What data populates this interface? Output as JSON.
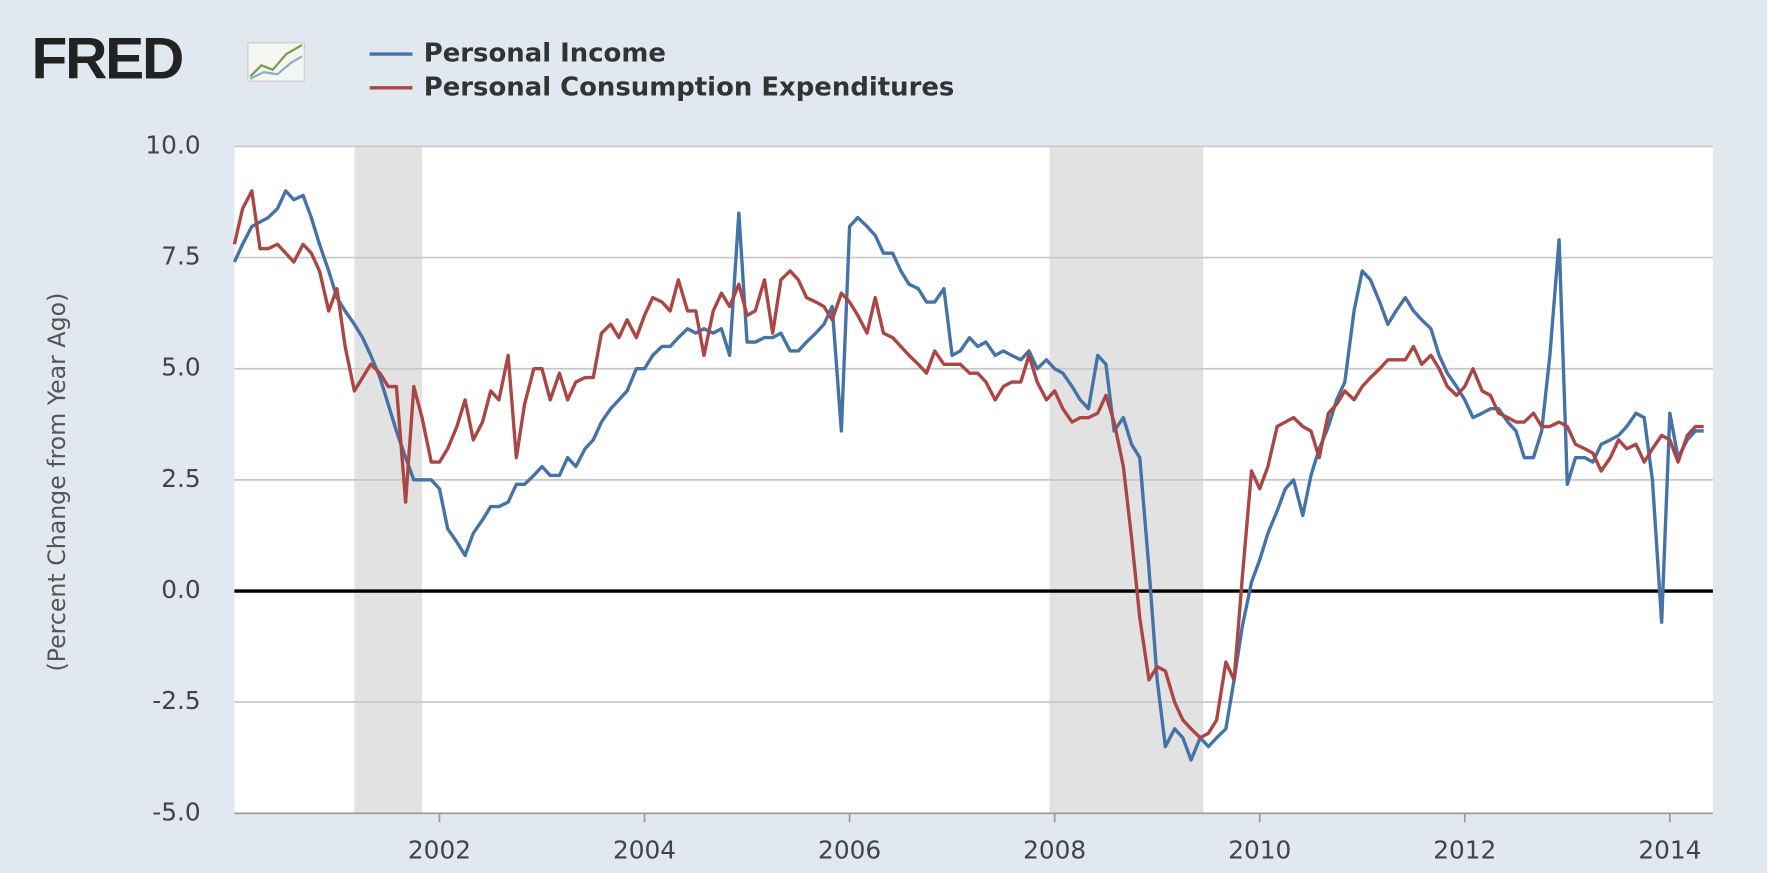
{
  "chart_data": {
    "type": "line",
    "logo": "FRED",
    "y_label": "(Percent Change from Year Ago)",
    "x": [
      2000,
      2000.08,
      2000.17,
      2000.25,
      2000.33,
      2000.42,
      2000.5,
      2000.58,
      2000.67,
      2000.75,
      2000.83,
      2000.92,
      2001,
      2001.08,
      2001.17,
      2001.25,
      2001.33,
      2001.42,
      2001.5,
      2001.58,
      2001.67,
      2001.75,
      2001.83,
      2001.92,
      2002,
      2002.08,
      2002.17,
      2002.25,
      2002.33,
      2002.42,
      2002.5,
      2002.58,
      2002.67,
      2002.75,
      2002.83,
      2002.92,
      2003,
      2003.08,
      2003.17,
      2003.25,
      2003.33,
      2003.42,
      2003.5,
      2003.58,
      2003.67,
      2003.75,
      2003.83,
      2003.92,
      2004,
      2004.08,
      2004.17,
      2004.25,
      2004.33,
      2004.42,
      2004.5,
      2004.58,
      2004.67,
      2004.75,
      2004.83,
      2004.92,
      2005,
      2005.08,
      2005.17,
      2005.25,
      2005.33,
      2005.42,
      2005.5,
      2005.58,
      2005.67,
      2005.75,
      2005.83,
      2005.92,
      2006,
      2006.08,
      2006.17,
      2006.25,
      2006.33,
      2006.42,
      2006.5,
      2006.58,
      2006.67,
      2006.75,
      2006.83,
      2006.92,
      2007,
      2007.08,
      2007.17,
      2007.25,
      2007.33,
      2007.42,
      2007.5,
      2007.58,
      2007.67,
      2007.75,
      2007.83,
      2007.92,
      2008,
      2008.08,
      2008.17,
      2008.25,
      2008.33,
      2008.42,
      2008.5,
      2008.58,
      2008.67,
      2008.75,
      2008.83,
      2008.92,
      2009,
      2009.08,
      2009.17,
      2009.25,
      2009.33,
      2009.42,
      2009.5,
      2009.58,
      2009.67,
      2009.75,
      2009.83,
      2009.92,
      2010,
      2010.08,
      2010.17,
      2010.25,
      2010.33,
      2010.42,
      2010.5,
      2010.58,
      2010.67,
      2010.75,
      2010.83,
      2010.92,
      2011,
      2011.08,
      2011.17,
      2011.25,
      2011.33,
      2011.42,
      2011.5,
      2011.58,
      2011.67,
      2011.75,
      2011.83,
      2011.92,
      2012,
      2012.08,
      2012.17,
      2012.25,
      2012.33,
      2012.42,
      2012.5,
      2012.58,
      2012.67,
      2012.75,
      2012.83,
      2012.92,
      2013,
      2013.08,
      2013.17,
      2013.25,
      2013.33,
      2013.42,
      2013.5,
      2013.58,
      2013.67,
      2013.75,
      2013.83,
      2013.92,
      2014,
      2014.08,
      2014.17,
      2014.25,
      2014.33
    ],
    "series": [
      {
        "name": "Personal Income",
        "color": "#4572a7",
        "values": [
          7.4,
          7.8,
          8.2,
          8.3,
          8.4,
          8.6,
          9.0,
          8.8,
          8.9,
          8.4,
          7.8,
          7.2,
          6.6,
          6.3,
          6.0,
          5.7,
          5.3,
          4.8,
          4.2,
          3.6,
          3.0,
          2.5,
          2.5,
          2.5,
          2.3,
          1.4,
          1.1,
          0.8,
          1.3,
          1.6,
          1.9,
          1.9,
          2.0,
          2.4,
          2.4,
          2.6,
          2.8,
          2.6,
          2.6,
          3.0,
          2.8,
          3.2,
          3.4,
          3.8,
          4.1,
          4.3,
          4.5,
          5.0,
          5.0,
          5.3,
          5.5,
          5.5,
          5.7,
          5.9,
          5.8,
          5.9,
          5.8,
          5.9,
          5.3,
          8.5,
          5.6,
          5.6,
          5.7,
          5.7,
          5.8,
          5.4,
          5.4,
          5.6,
          5.8,
          6.0,
          6.4,
          3.6,
          8.2,
          8.4,
          8.2,
          8.0,
          7.6,
          7.6,
          7.2,
          6.9,
          6.8,
          6.5,
          6.5,
          6.8,
          5.3,
          5.4,
          5.7,
          5.5,
          5.6,
          5.3,
          5.4,
          5.3,
          5.2,
          5.4,
          5.0,
          5.2,
          5.0,
          4.9,
          4.6,
          4.3,
          4.1,
          5.3,
          5.1,
          3.6,
          3.9,
          3.3,
          3.0,
          0.5,
          -2.0,
          -3.5,
          -3.1,
          -3.3,
          -3.8,
          -3.3,
          -3.5,
          -3.3,
          -3.1,
          -2.0,
          -0.8,
          0.2,
          0.7,
          1.3,
          1.8,
          2.3,
          2.5,
          1.7,
          2.6,
          3.2,
          3.7,
          4.3,
          4.7,
          6.3,
          7.2,
          7.0,
          6.5,
          6.0,
          6.3,
          6.6,
          6.3,
          6.1,
          5.9,
          5.3,
          4.9,
          4.6,
          4.3,
          3.9,
          4.0,
          4.1,
          4.1,
          3.8,
          3.6,
          3.0,
          3.0,
          3.6,
          5.3,
          7.9,
          2.4,
          3.0,
          3.0,
          2.9,
          3.3,
          3.4,
          3.5,
          3.7,
          4.0,
          3.9,
          2.5,
          -0.7,
          4.0,
          3.0,
          3.4,
          3.6,
          3.6
        ]
      },
      {
        "name": "Personal Consumption Expenditures",
        "color": "#aa4643",
        "values": [
          7.8,
          8.6,
          9.0,
          7.7,
          7.7,
          7.8,
          7.6,
          7.4,
          7.8,
          7.6,
          7.2,
          6.3,
          6.8,
          5.5,
          4.5,
          4.8,
          5.1,
          4.9,
          4.6,
          4.6,
          2.0,
          4.6,
          3.9,
          2.9,
          2.9,
          3.2,
          3.7,
          4.3,
          3.4,
          3.8,
          4.5,
          4.3,
          5.3,
          3.0,
          4.2,
          5.0,
          5.0,
          4.3,
          4.9,
          4.3,
          4.7,
          4.8,
          4.8,
          5.8,
          6.0,
          5.7,
          6.1,
          5.7,
          6.2,
          6.6,
          6.5,
          6.3,
          7.0,
          6.3,
          6.3,
          5.3,
          6.3,
          6.7,
          6.4,
          6.9,
          6.2,
          6.3,
          7.0,
          5.8,
          7.0,
          7.2,
          7.0,
          6.6,
          6.5,
          6.4,
          6.1,
          6.7,
          6.5,
          6.2,
          5.8,
          6.6,
          5.8,
          5.7,
          5.5,
          5.3,
          5.1,
          4.9,
          5.4,
          5.1,
          5.1,
          5.1,
          4.9,
          4.9,
          4.7,
          4.3,
          4.6,
          4.7,
          4.7,
          5.3,
          4.7,
          4.3,
          4.5,
          4.1,
          3.8,
          3.9,
          3.9,
          4.0,
          4.4,
          3.8,
          2.8,
          1.2,
          -0.6,
          -2.0,
          -1.7,
          -1.8,
          -2.5,
          -2.9,
          -3.1,
          -3.3,
          -3.2,
          -2.9,
          -1.6,
          -2.0,
          0.3,
          2.7,
          2.3,
          2.8,
          3.7,
          3.8,
          3.9,
          3.7,
          3.6,
          3.0,
          4.0,
          4.2,
          4.5,
          4.3,
          4.6,
          4.8,
          5.0,
          5.2,
          5.2,
          5.2,
          5.5,
          5.1,
          5.3,
          5.0,
          4.6,
          4.4,
          4.6,
          5.0,
          4.5,
          4.4,
          4.0,
          3.9,
          3.8,
          3.8,
          4.0,
          3.7,
          3.7,
          3.8,
          3.7,
          3.3,
          3.2,
          3.1,
          2.7,
          3.0,
          3.4,
          3.2,
          3.3,
          2.9,
          3.2,
          3.5,
          3.4,
          2.9,
          3.5,
          3.7,
          3.7
        ]
      }
    ],
    "recessions": [
      [
        2001.17,
        2001.83
      ],
      [
        2007.95,
        2009.45
      ]
    ],
    "recession_color": "#e2e2e2",
    "xlim": [
      2000,
      2014.42
    ],
    "xticks": [
      2002,
      2004,
      2006,
      2008,
      2010,
      2012,
      2014
    ],
    "ylim": [
      -5,
      10
    ],
    "yticks": [
      {
        "value": -5,
        "label": "-5.0"
      },
      {
        "value": -2.5,
        "label": "-2.5"
      },
      {
        "value": 0,
        "label": "0.0"
      },
      {
        "value": 2.5,
        "label": "2.5"
      },
      {
        "value": 5,
        "label": "5.0"
      },
      {
        "value": 7.5,
        "label": "7.5"
      },
      {
        "value": 10,
        "label": "10.0"
      }
    ],
    "grid": true
  }
}
